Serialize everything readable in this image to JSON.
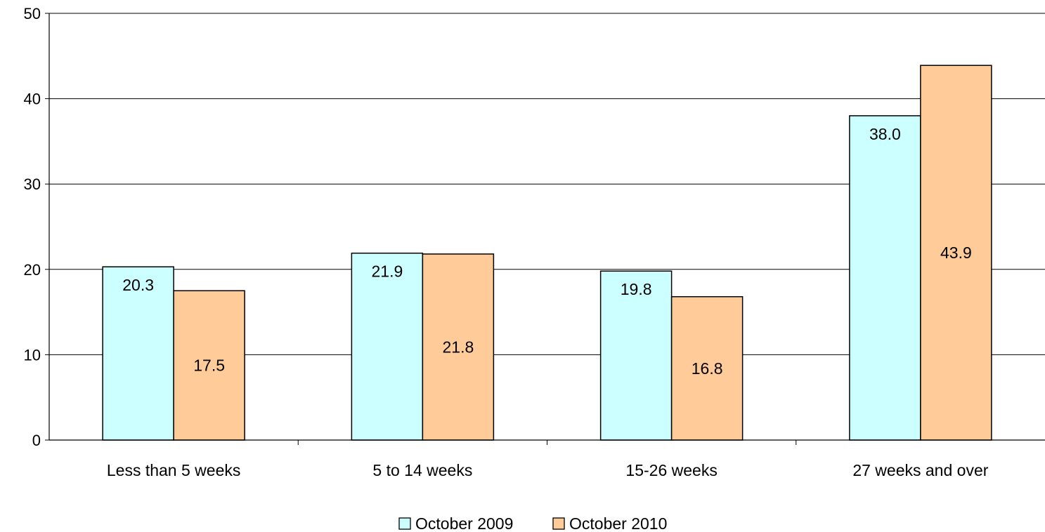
{
  "chart_data": {
    "type": "bar",
    "title": "",
    "xlabel": "",
    "ylabel": "",
    "categories": [
      "Less than 5 weeks",
      "5 to 14 weeks",
      "15-26 weeks",
      "27 weeks and over"
    ],
    "series": [
      {
        "name": "October 2009",
        "values": [
          20.3,
          21.9,
          19.8,
          38.0
        ],
        "labels": [
          "20.3",
          "21.9",
          "19.8",
          "38.0"
        ],
        "color": "#ccffff"
      },
      {
        "name": "October 2010",
        "values": [
          17.5,
          21.8,
          16.8,
          43.9
        ],
        "labels": [
          "17.5",
          "21.8",
          "16.8",
          "43.9"
        ],
        "color": "#ffcc99"
      }
    ],
    "ylim": [
      0,
      50
    ],
    "yticks": [
      "0",
      "10",
      "20",
      "30",
      "40",
      "50"
    ],
    "grid": true,
    "legend_position": "bottom-center"
  }
}
